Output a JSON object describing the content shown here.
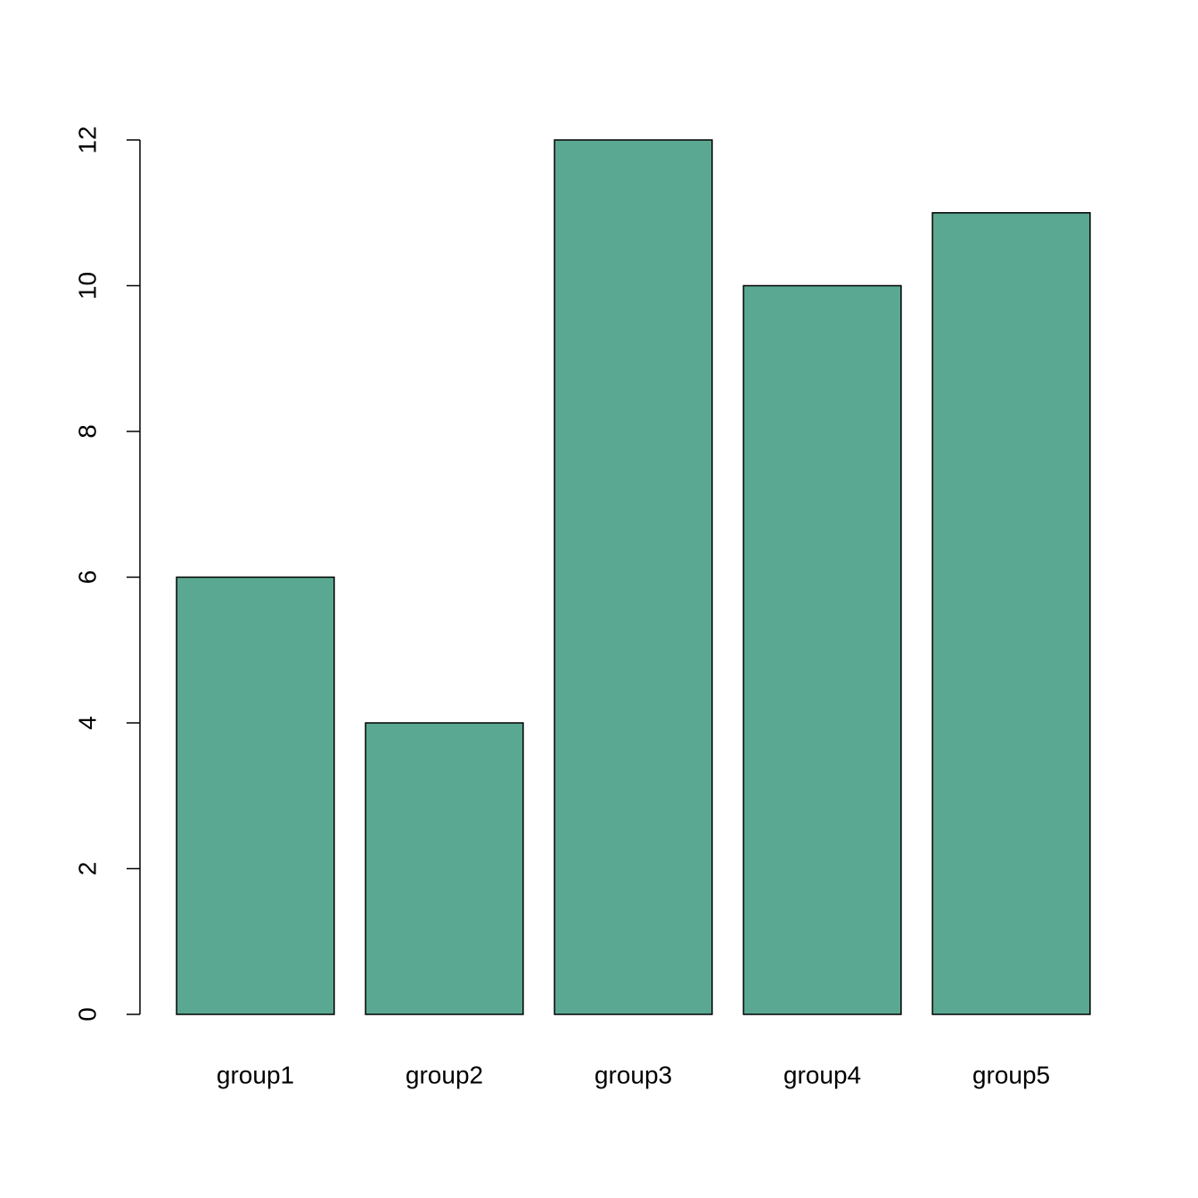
{
  "chart_data": {
    "type": "bar",
    "categories": [
      "group1",
      "group2",
      "group3",
      "group4",
      "group5"
    ],
    "values": [
      6,
      4,
      12,
      10,
      11
    ],
    "color": "#5aa891",
    "ylim": [
      0,
      12
    ],
    "yticks": [
      0,
      2,
      4,
      6,
      8,
      10,
      12
    ]
  }
}
